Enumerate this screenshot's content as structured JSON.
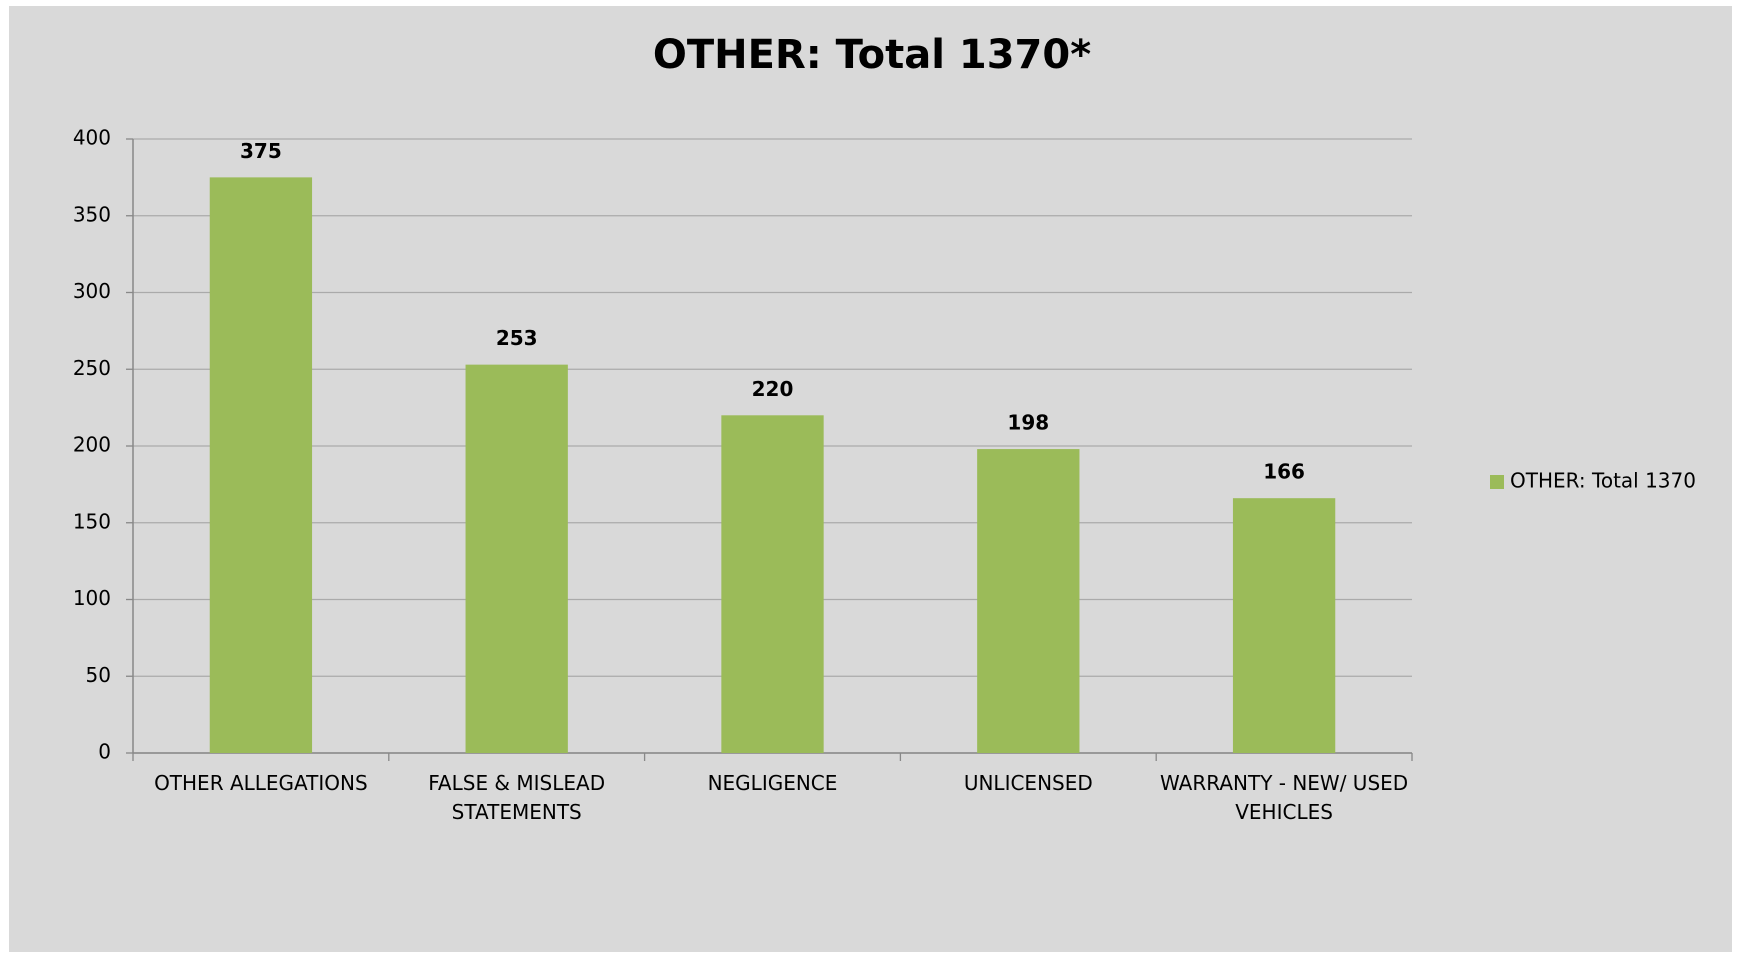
{
  "chart_data": {
    "type": "bar",
    "title": "OTHER: Total 1370*",
    "categories": [
      "OTHER ALLEGATIONS",
      "FALSE & MISLEAD STATEMENTS",
      "NEGLIGENCE",
      "UNLICENSED",
      "WARRANTY - NEW/ USED VEHICLES"
    ],
    "series": [
      {
        "name": "OTHER: Total 1370",
        "color": "#9bbb59",
        "values": [
          375,
          253,
          220,
          198,
          166
        ]
      }
    ],
    "ylim": [
      0,
      400
    ],
    "yticks": [
      0,
      50,
      100,
      150,
      200,
      250,
      300,
      350,
      400
    ],
    "grid": true,
    "legend": "right"
  }
}
